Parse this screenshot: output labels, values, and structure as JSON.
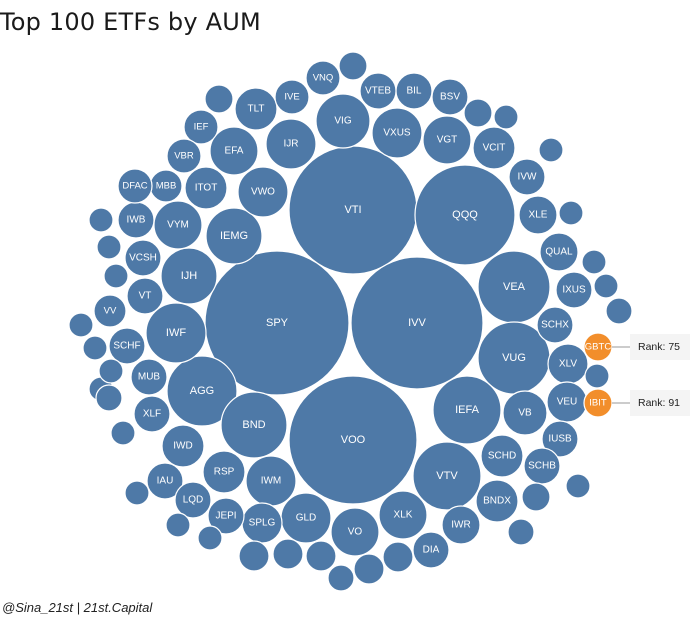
{
  "chart_data": {
    "type": "bubble",
    "title": "Top 100 ETFs by AUM",
    "colors": {
      "default": "#4e79a7",
      "highlight": "#f28e2b"
    },
    "items": [
      {
        "label": "VTI"
      },
      {
        "label": "QQQ"
      },
      {
        "label": "SPY"
      },
      {
        "label": "IVV"
      },
      {
        "label": "VOO"
      },
      {
        "label": "VEA"
      },
      {
        "label": "VUG"
      },
      {
        "label": "IEFA"
      },
      {
        "label": "VTV"
      },
      {
        "label": "AGG"
      },
      {
        "label": "BND"
      },
      {
        "label": "IWF"
      },
      {
        "label": "IJH"
      },
      {
        "label": "IEMG"
      },
      {
        "label": "VIG"
      },
      {
        "label": "VXUS"
      },
      {
        "label": "VGT"
      },
      {
        "label": "IJR"
      },
      {
        "label": "VWO"
      },
      {
        "label": "IWM"
      },
      {
        "label": "GLD"
      },
      {
        "label": "XLK"
      },
      {
        "label": "VO"
      },
      {
        "label": "VYM"
      },
      {
        "label": "EFA"
      },
      {
        "label": "TLT"
      },
      {
        "label": "ITOT"
      },
      {
        "label": "VCIT"
      },
      {
        "label": "VB"
      },
      {
        "label": "SCHD"
      },
      {
        "label": "RSP"
      },
      {
        "label": "IWD"
      },
      {
        "label": "BNDX"
      },
      {
        "label": "XLV"
      },
      {
        "label": "VEU"
      },
      {
        "label": "SPLG"
      },
      {
        "label": "JEPI"
      },
      {
        "label": "IWR"
      },
      {
        "label": "XLE"
      },
      {
        "label": "QUAL"
      },
      {
        "label": "IVW"
      },
      {
        "label": "MUB"
      },
      {
        "label": "SCHF"
      },
      {
        "label": "VCSH"
      },
      {
        "label": "IWB"
      },
      {
        "label": "XLF"
      },
      {
        "label": "IAU"
      },
      {
        "label": "LQD"
      },
      {
        "label": "DIA"
      },
      {
        "label": "SCHX"
      },
      {
        "label": "IXUS"
      },
      {
        "label": "IUSB"
      },
      {
        "label": "SCHB"
      },
      {
        "label": "BSV"
      },
      {
        "label": "BIL"
      },
      {
        "label": "VTEB"
      },
      {
        "label": "VNQ"
      },
      {
        "label": "IVE"
      },
      {
        "label": "IEF"
      },
      {
        "label": "VBR"
      },
      {
        "label": "MBB"
      },
      {
        "label": "DFAC"
      },
      {
        "label": "VT"
      },
      {
        "label": "VV"
      },
      {
        "label": "GBTC",
        "highlight": true,
        "annotation": "Rank: 75"
      },
      {
        "label": "IBIT",
        "highlight": true,
        "annotation": "Rank: 91"
      },
      {
        "label": ""
      },
      {
        "label": ""
      },
      {
        "label": ""
      },
      {
        "label": ""
      },
      {
        "label": ""
      },
      {
        "label": ""
      },
      {
        "label": ""
      },
      {
        "label": ""
      },
      {
        "label": ""
      },
      {
        "label": ""
      },
      {
        "label": ""
      },
      {
        "label": ""
      },
      {
        "label": ""
      },
      {
        "label": ""
      },
      {
        "label": ""
      },
      {
        "label": ""
      },
      {
        "label": ""
      },
      {
        "label": ""
      },
      {
        "label": ""
      },
      {
        "label": ""
      },
      {
        "label": ""
      },
      {
        "label": ""
      },
      {
        "label": ""
      },
      {
        "label": ""
      },
      {
        "label": ""
      },
      {
        "label": ""
      },
      {
        "label": ""
      },
      {
        "label": ""
      },
      {
        "label": ""
      },
      {
        "label": ""
      },
      {
        "label": ""
      },
      {
        "label": ""
      },
      {
        "label": ""
      },
      {
        "label": ""
      }
    ]
  },
  "footer": {
    "credit": "@Sina_21st | 21st.Capital"
  }
}
